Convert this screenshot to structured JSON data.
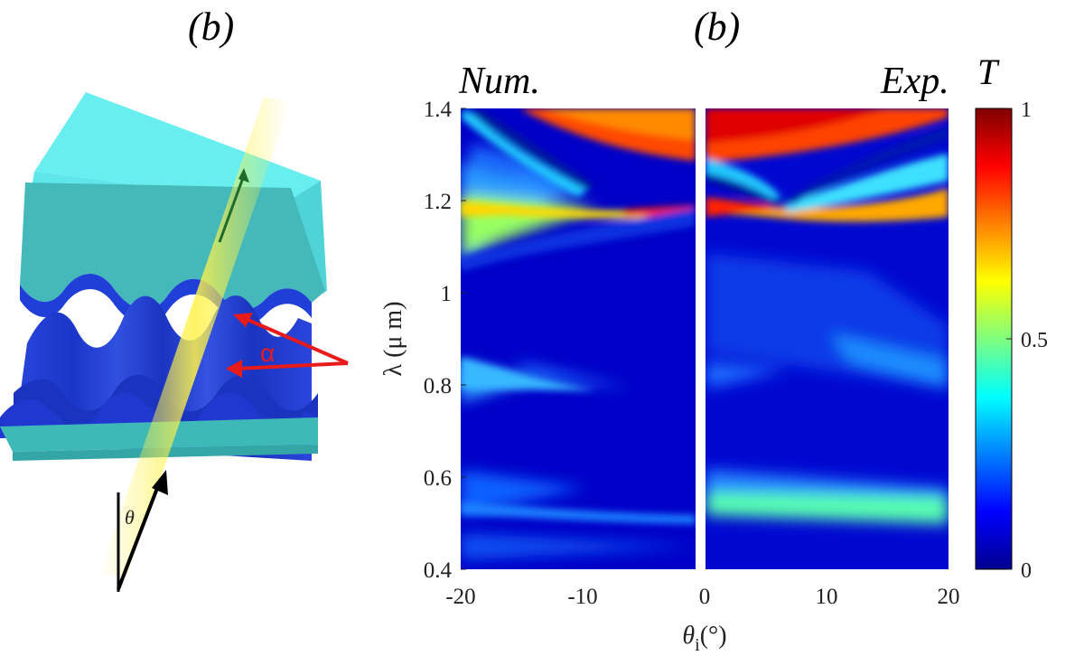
{
  "panel_labels": {
    "left": "(b)",
    "right": "(b)"
  },
  "illustration": {
    "angle_label_alpha": "α",
    "angle_label_theta": "θ",
    "colors": {
      "slab": "#5fe6ea",
      "slab_side": "#3fb8b8",
      "corrugation": "#1f3fd8",
      "beam": "#fff24a",
      "arrow": "#e81a1a"
    }
  },
  "chart_data": {
    "type": "heatmap",
    "panels": [
      {
        "name": "Num.",
        "x_range": [
          -20,
          0
        ]
      },
      {
        "name": "Exp.",
        "x_range": [
          0,
          20
        ]
      }
    ],
    "xlabel": "θi(°)",
    "ylabel": "λ (μ m)",
    "xlim": [
      -20,
      20
    ],
    "ylim": [
      0.4,
      1.4
    ],
    "xticks": [
      -20,
      -10,
      0,
      10,
      20
    ],
    "yticks": [
      0.4,
      0.6,
      0.8,
      1,
      1.2,
      1.4
    ],
    "colorbar": {
      "label": "T",
      "range": [
        0,
        1
      ],
      "ticks": [
        0,
        0.5,
        1
      ],
      "colormap": "jet"
    },
    "features": {
      "crossing_point": {
        "x": -4,
        "y": 1.175,
        "value": 1.0
      },
      "crossing_point_exp": {
        "x": 4,
        "y": 1.17,
        "value": 0.95
      },
      "high_transmission_region": {
        "y_min": 1.32,
        "y_max": 1.4,
        "value": 0.9
      }
    }
  }
}
